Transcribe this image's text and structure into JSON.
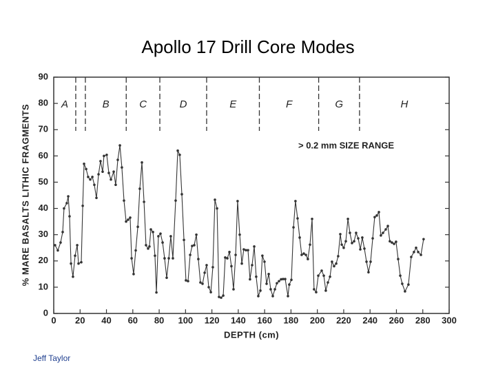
{
  "chart_data": {
    "type": "line",
    "title": "Apollo 17 Drill Core Modes",
    "xlabel": "DEPTH (cm)",
    "ylabel": "% MARE BASALTS LITHIC FRAGMENTS",
    "annotation": "> 0.2 mm SIZE RANGE",
    "credit": "Jeff Taylor",
    "color": "#333333",
    "xlim": [
      0,
      300
    ],
    "ylim": [
      0,
      90
    ],
    "xticks": [
      0,
      20,
      40,
      60,
      80,
      100,
      120,
      140,
      160,
      180,
      200,
      220,
      240,
      260,
      280,
      300
    ],
    "yticks": [
      0,
      10,
      20,
      30,
      40,
      50,
      60,
      70,
      80,
      90
    ],
    "zones": [
      {
        "label": "A",
        "from": 0,
        "to": 16.7
      },
      {
        "label": "B",
        "from": 24,
        "to": 55
      },
      {
        "label": "C",
        "from": 55,
        "to": 80.5
      },
      {
        "label": "D",
        "from": 80.5,
        "to": 116
      },
      {
        "label": "E",
        "from": 116,
        "to": 156
      },
      {
        "label": "F",
        "from": 156,
        "to": 201
      },
      {
        "label": "G",
        "from": 201,
        "to": 232
      },
      {
        "label": "H",
        "from": 232,
        "to": 300
      }
    ],
    "x": [
      1.0,
      3.1,
      5.2,
      6.8,
      7.8,
      9.9,
      11.0,
      12.0,
      13.1,
      14.6,
      16.2,
      17.8,
      18.8,
      20.9,
      22.0,
      23.0,
      24.6,
      26.1,
      27.7,
      29.3,
      30.8,
      32.4,
      34.0,
      35.5,
      37.1,
      38.1,
      40.2,
      41.8,
      43.4,
      45.5,
      47.0,
      48.6,
      50.2,
      51.7,
      53.3,
      54.9,
      56.4,
      58.0,
      59.1,
      60.6,
      62.2,
      63.8,
      65.3,
      66.9,
      68.5,
      70.0,
      71.6,
      72.6,
      73.7,
      75.3,
      76.8,
      77.9,
      79.4,
      81.0,
      82.6,
      84.1,
      85.7,
      87.3,
      88.8,
      90.4,
      92.5,
      94.1,
      95.6,
      97.2,
      98.8,
      100.3,
      101.9,
      103.5,
      105.0,
      106.6,
      108.2,
      109.7,
      111.3,
      112.9,
      114.5,
      116.0,
      117.6,
      119.2,
      120.7,
      122.3,
      123.9,
      125.4,
      127.0,
      128.6,
      130.1,
      131.7,
      133.3,
      134.8,
      136.4,
      138.0,
      139.5,
      141.1,
      142.7,
      144.2,
      145.8,
      147.4,
      148.9,
      150.5,
      152.1,
      153.6,
      155.2,
      156.8,
      158.3,
      159.9,
      161.5,
      163.1,
      164.6,
      166.2,
      167.8,
      169.3,
      170.9,
      172.5,
      174.0,
      175.6,
      177.7,
      178.7,
      180.3,
      181.9,
      183.4,
      185.0,
      186.6,
      188.1,
      189.7,
      191.3,
      192.8,
      194.4,
      196.0,
      197.5,
      199.1,
      200.7,
      203.3,
      204.9,
      206.4,
      208.0,
      209.6,
      211.1,
      212.7,
      214.3,
      215.8,
      217.4,
      218.5,
      220.0,
      221.6,
      223.2,
      224.7,
      226.3,
      227.9,
      229.4,
      231.0,
      232.6,
      234.1,
      235.7,
      237.3,
      238.8,
      240.4,
      242.0,
      243.5,
      245.1,
      246.7,
      248.2,
      249.8,
      251.9,
      253.5,
      255.0,
      256.6,
      258.2,
      259.7,
      261.3,
      262.9,
      264.4,
      266.5,
      269.1,
      271.2,
      273.3,
      274.9,
      276.5,
      278.6,
      280.6
    ],
    "values": [
      26,
      24,
      27,
      31,
      40,
      42,
      44.6,
      37,
      19,
      14,
      22,
      26,
      19,
      19.5,
      41,
      57,
      55,
      52,
      51,
      52,
      49,
      44,
      53,
      58,
      54,
      60,
      60.4,
      53.5,
      51,
      54,
      49,
      58.5,
      64,
      55.6,
      43,
      35,
      35.7,
      36.5,
      21,
      15,
      24,
      33,
      47.5,
      57.5,
      42.5,
      26,
      24.7,
      25.5,
      32,
      31,
      22,
      8,
      29.4,
      30.4,
      27,
      21,
      13.6,
      21,
      29.4,
      21,
      43,
      62,
      60.4,
      45.4,
      28,
      12.6,
      12.3,
      22.3,
      25.7,
      26,
      30,
      20.7,
      11.8,
      11.3,
      15.5,
      18.4,
      10,
      8.1,
      17.6,
      43.3,
      40,
      6.3,
      6,
      6.8,
      21.3,
      21,
      23.4,
      18,
      9.2,
      22.3,
      42.8,
      30,
      19,
      24.4,
      24.1,
      24.1,
      13,
      18.4,
      25.5,
      14,
      6.6,
      8.7,
      22,
      19.7,
      11.3,
      15,
      9.2,
      6.6,
      9.2,
      11.5,
      12.3,
      13,
      13.1,
      13.1,
      6.6,
      11,
      12.8,
      32.8,
      42.8,
      36.2,
      28.9,
      22.3,
      22.8,
      22.3,
      20.7,
      26.2,
      36,
      9.2,
      8.1,
      14.4,
      16.3,
      14.4,
      8.7,
      11.8,
      14,
      19.7,
      18,
      19,
      21.8,
      30.2,
      26.2,
      25,
      27.5,
      36,
      30.7,
      26.8,
      27.5,
      30.7,
      28.6,
      24.4,
      28.9,
      24.7,
      19.7,
      15.7,
      19.7,
      28.6,
      36.7,
      37.3,
      38.6,
      29.7,
      30.7,
      32,
      33.3,
      27.5,
      27,
      26.5,
      27.3,
      20.7,
      14.4,
      11.3,
      8.4,
      11,
      21.5,
      23.4,
      25,
      23.4,
      22.3,
      28.3
    ]
  }
}
